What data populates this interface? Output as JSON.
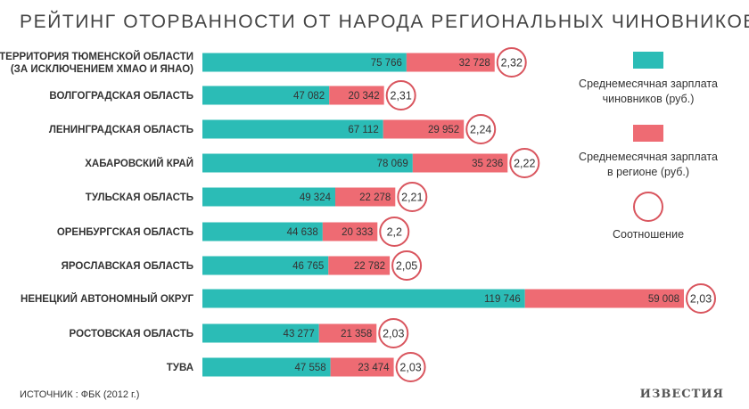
{
  "chart_data": {
    "type": "bar",
    "title": "РЕЙТИНГ ОТОРВАННОСТИ ОТ НАРОДА РЕГИОНАЛЬНЫХ ЧИНОВНИКОВ",
    "stacked": true,
    "categories": [
      [
        "ТЕРРИТОРИЯ ТЮМЕНСКОЙ ОБЛАСТИ",
        "(ЗА ИСКЛЮЧЕНИЕМ ХМАО И ЯНАО)"
      ],
      [
        "ВОЛГОГРАДСКАЯ ОБЛАСТЬ"
      ],
      [
        "ЛЕНИНГРАДСКАЯ ОБЛАСТЬ"
      ],
      [
        "ХАБАРОВСКИЙ КРАЙ"
      ],
      [
        "ТУЛЬСКАЯ ОБЛАСТЬ"
      ],
      [
        "ОРЕНБУРГСКАЯ ОБЛАСТЬ"
      ],
      [
        "ЯРОСЛАВСКАЯ ОБЛАСТЬ"
      ],
      [
        "НЕНЕЦКИЙ АВТОНОМНЫЙ ОКРУГ"
      ],
      [
        "РОСТОВСКАЯ ОБЛАСТЬ"
      ],
      [
        "ТУВА"
      ]
    ],
    "series": [
      {
        "name": [
          "Среднемесячная зарплата",
          "чиновников (руб.)"
        ],
        "color": "#2bbcb6",
        "values": [
          75766,
          47082,
          67112,
          78069,
          49324,
          44638,
          46765,
          119746,
          43277,
          47558
        ],
        "labels": [
          "75 766",
          "47 082",
          "67 112",
          "78 069",
          "49 324",
          "44 638",
          "46 765",
          "119 746",
          "43 277",
          "47 558"
        ]
      },
      {
        "name": [
          "Среднемесячная зарплата",
          "в регионе (руб.)"
        ],
        "color": "#ee6b73",
        "values": [
          32728,
          20342,
          29952,
          35236,
          22278,
          20333,
          22782,
          59008,
          21358,
          23474
        ],
        "labels": [
          "32 728",
          "20 342",
          "29 952",
          "35 236",
          "22 278",
          "20 333",
          "22 782",
          "59 008",
          "21 358",
          "23 474"
        ]
      }
    ],
    "ratio": {
      "name": "Соотношение",
      "labels": [
        "2,32",
        "2,31",
        "2,24",
        "2,22",
        "2,21",
        "2,2",
        "2,05",
        "2,03",
        "2,03",
        "2,03"
      ],
      "color": "#d9555e"
    },
    "legend_position": "right",
    "grid": false
  },
  "source": "ИСТОЧНИК : ФБК (2012 г.)",
  "logo": "ИЗВЕСТИЯ"
}
